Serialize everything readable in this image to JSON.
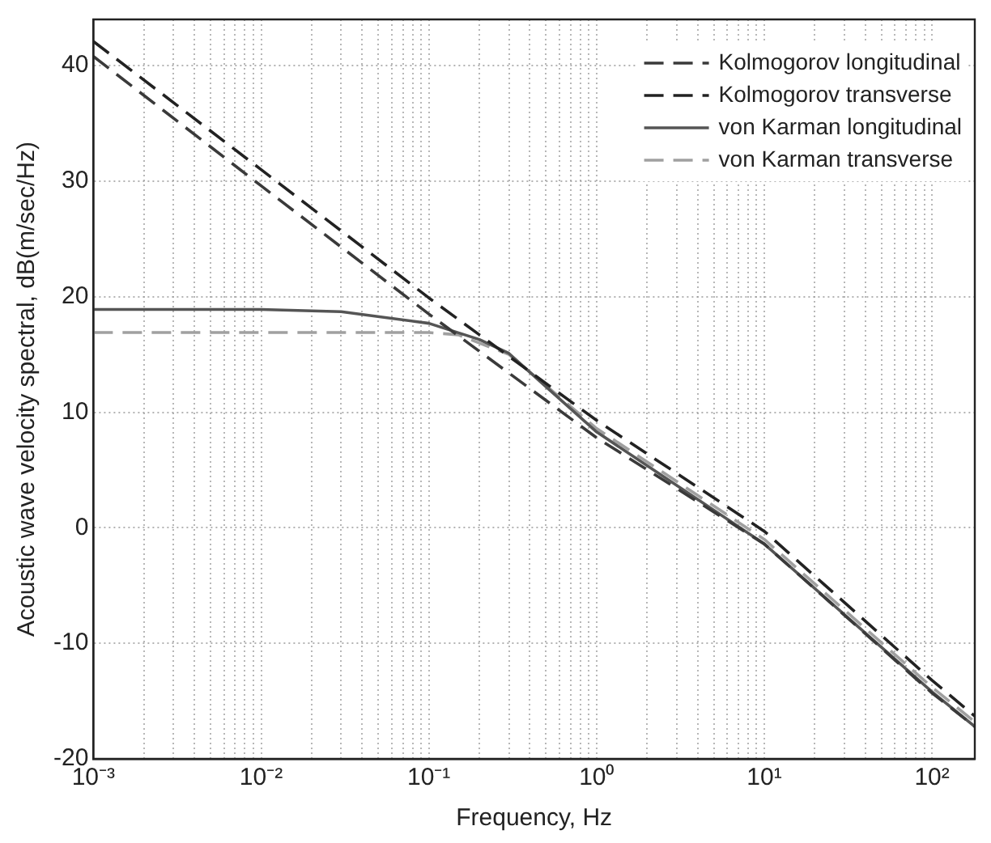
{
  "chart_data": {
    "type": "line",
    "xlabel": "Frequency, Hz",
    "ylabel": "Acoustic wave velocity spectral, dB(m/sec/Hz)",
    "log": "x",
    "grid": true,
    "legend": "top right",
    "marker": "none",
    "xlim": [
      0.001,
      180
    ],
    "ylim": [
      -20,
      44
    ],
    "xticks": [
      {
        "value": 0.001,
        "label": "10⁻³"
      },
      {
        "value": 0.002,
        "label": null
      },
      {
        "value": 0.003,
        "label": null
      },
      {
        "value": 0.004,
        "label": null
      },
      {
        "value": 0.005,
        "label": null
      },
      {
        "value": 0.006,
        "label": null
      },
      {
        "value": 0.007,
        "label": null
      },
      {
        "value": 0.008,
        "label": null
      },
      {
        "value": 0.009,
        "label": null
      },
      {
        "value": 0.01,
        "label": "10⁻²"
      },
      {
        "value": 0.02,
        "label": null
      },
      {
        "value": 0.03,
        "label": null
      },
      {
        "value": 0.04,
        "label": null
      },
      {
        "value": 0.05,
        "label": null
      },
      {
        "value": 0.06,
        "label": null
      },
      {
        "value": 0.07,
        "label": null
      },
      {
        "value": 0.08,
        "label": null
      },
      {
        "value": 0.09,
        "label": null
      },
      {
        "value": 0.1,
        "label": "10⁻¹"
      },
      {
        "value": 0.2,
        "label": null
      },
      {
        "value": 0.3,
        "label": null
      },
      {
        "value": 0.4,
        "label": null
      },
      {
        "value": 0.5,
        "label": null
      },
      {
        "value": 0.6,
        "label": null
      },
      {
        "value": 0.7,
        "label": null
      },
      {
        "value": 0.8,
        "label": null
      },
      {
        "value": 0.9,
        "label": null
      },
      {
        "value": 1,
        "label": "10⁰"
      },
      {
        "value": 2,
        "label": null
      },
      {
        "value": 3,
        "label": null
      },
      {
        "value": 4,
        "label": null
      },
      {
        "value": 5,
        "label": null
      },
      {
        "value": 6,
        "label": null
      },
      {
        "value": 7,
        "label": null
      },
      {
        "value": 8,
        "label": null
      },
      {
        "value": 9,
        "label": null
      },
      {
        "value": 10,
        "label": "10¹"
      },
      {
        "value": 20,
        "label": null
      },
      {
        "value": 30,
        "label": null
      },
      {
        "value": 40,
        "label": null
      },
      {
        "value": 50,
        "label": null
      },
      {
        "value": 60,
        "label": null
      },
      {
        "value": 70,
        "label": null
      },
      {
        "value": 80,
        "label": null
      },
      {
        "value": 90,
        "label": null
      },
      {
        "value": 100,
        "label": "10²"
      }
    ],
    "yticks": [
      -20,
      -10,
      0,
      10,
      20,
      30,
      40
    ],
    "series": [
      {
        "name": "Kolmogorov longitudinal",
        "color": "#3a3a3a",
        "line_style": "dashed",
        "x": [
          0.001,
          0.01,
          0.1,
          1,
          10,
          100,
          180
        ],
        "values": [
          40.8,
          29.6,
          18.5,
          7.8,
          -1.4,
          -14.3,
          -17.2
        ]
      },
      {
        "name": "Kolmogorov transverse",
        "color": "#222222",
        "line_style": "dashed",
        "x": [
          0.001,
          0.01,
          0.1,
          1,
          10,
          100,
          180
        ],
        "values": [
          42.1,
          31.0,
          19.9,
          9.3,
          -0.3,
          -13.2,
          -16.3
        ]
      },
      {
        "name": "von Karman longitudinal",
        "color": "#555555",
        "line_style": "solid",
        "x": [
          0.001,
          0.01,
          0.03,
          0.1,
          0.2,
          0.3,
          0.5,
          1,
          10,
          100,
          180
        ],
        "values": [
          18.9,
          18.9,
          18.7,
          17.7,
          16.3,
          15.1,
          12.2,
          8.3,
          -1.4,
          -14.2,
          -17.2
        ]
      },
      {
        "name": "von Karman transverse",
        "color": "#a0a0a0",
        "line_style": "dashed",
        "x": [
          0.001,
          0.01,
          0.1,
          0.15,
          0.3,
          0.5,
          1,
          10,
          100,
          180
        ],
        "values": [
          16.9,
          16.9,
          16.9,
          16.7,
          15.0,
          12.3,
          8.6,
          -1.0,
          -13.8,
          -16.8
        ]
      }
    ]
  }
}
